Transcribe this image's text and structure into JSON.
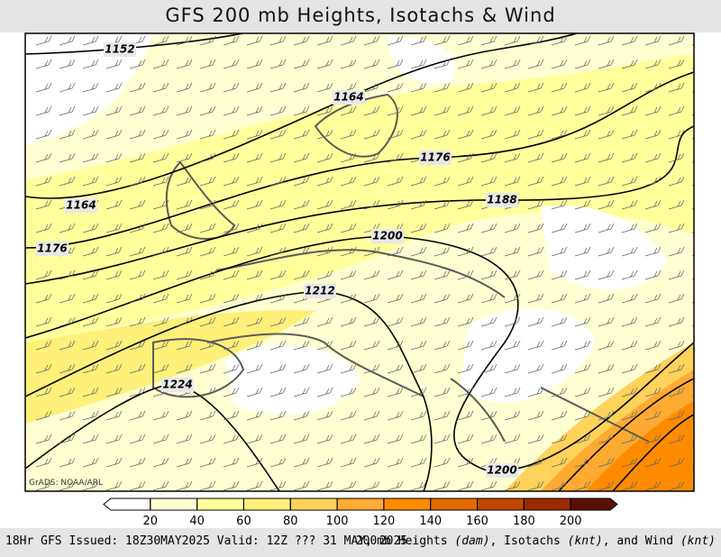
{
  "title": "GFS 200 mb Heights, Isotachs & Wind",
  "credit": "GrADS: NOAA/ARL",
  "contour_labels": [
    1152,
    1164,
    1176,
    1164,
    1188,
    1176,
    1200,
    1212,
    1224,
    1200
  ],
  "colorbar": {
    "colors": [
      "#ffffff",
      "#ffffd2",
      "#ffff9c",
      "#fff07a",
      "#ffd25a",
      "#ffaa32",
      "#ff8c00",
      "#e06a00",
      "#c04800",
      "#9a2a00",
      "#5a1000"
    ],
    "ticks": [
      20,
      40,
      60,
      80,
      100,
      120,
      140,
      160,
      180,
      200
    ]
  },
  "footer": {
    "left": "18Hr GFS Issued: 18Z30MAY2025 Valid: 12Z ??? 31 MAY, 2025",
    "right": [
      "200mb Heights ",
      "(dam)",
      ", Isotachs ",
      "(knt)",
      ", and Wind ",
      "(knt)"
    ]
  }
}
